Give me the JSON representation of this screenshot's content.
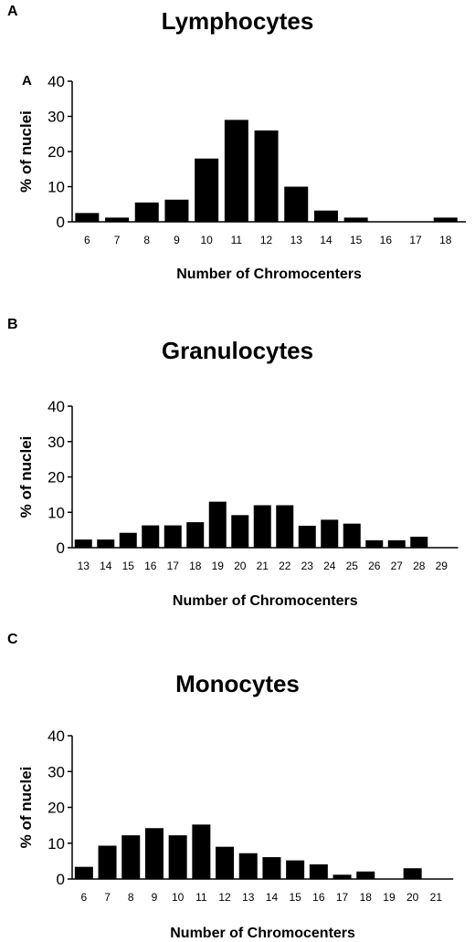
{
  "panels": [
    {
      "letter": "A",
      "inner_letter": "A"
    },
    {
      "letter": "B"
    },
    {
      "letter": "C"
    }
  ],
  "chart_data": [
    {
      "type": "bar",
      "title": "Lymphocytes",
      "xlabel": "Number of Chromocenters",
      "ylabel": "% of nuclei",
      "ylim": [
        0,
        40
      ],
      "yticks": [
        0,
        10,
        20,
        30,
        40
      ],
      "grid": false,
      "categories": [
        "6",
        "7",
        "8",
        "9",
        "10",
        "11",
        "12",
        "13",
        "14",
        "15",
        "16",
        "17",
        "18"
      ],
      "values": [
        2.5,
        1.2,
        5.5,
        6.3,
        18,
        29,
        26,
        10,
        3.2,
        1.2,
        0,
        0,
        1.2
      ]
    },
    {
      "type": "bar",
      "title": "Granulocytes",
      "xlabel": "Number of Chromocenters",
      "ylabel": "% of nuclei",
      "ylim": [
        0,
        40
      ],
      "yticks": [
        0,
        10,
        20,
        30,
        40
      ],
      "grid": false,
      "categories": [
        "13",
        "14",
        "15",
        "16",
        "17",
        "18",
        "19",
        "20",
        "21",
        "22",
        "23",
        "24",
        "25",
        "26",
        "27",
        "28",
        "29"
      ],
      "values": [
        2.3,
        2.3,
        4.2,
        6.3,
        6.3,
        7.2,
        13,
        9.2,
        12,
        12,
        6.2,
        7.9,
        6.8,
        2.1,
        2.1,
        3.1,
        0
      ]
    },
    {
      "type": "bar",
      "title": "Monocytes",
      "xlabel": "Number of Chromocenters",
      "ylabel": "% of nuclei",
      "ylim": [
        0,
        40
      ],
      "yticks": [
        0,
        10,
        20,
        30,
        40
      ],
      "grid": false,
      "categories": [
        "6",
        "7",
        "8",
        "9",
        "10",
        "11",
        "12",
        "13",
        "14",
        "15",
        "16",
        "17",
        "18",
        "19",
        "20",
        "21"
      ],
      "values": [
        3.4,
        9.3,
        12.2,
        14.2,
        12.2,
        15.2,
        9,
        7.2,
        6.1,
        5.2,
        4.1,
        1.2,
        2.1,
        0,
        3,
        0
      ]
    }
  ]
}
